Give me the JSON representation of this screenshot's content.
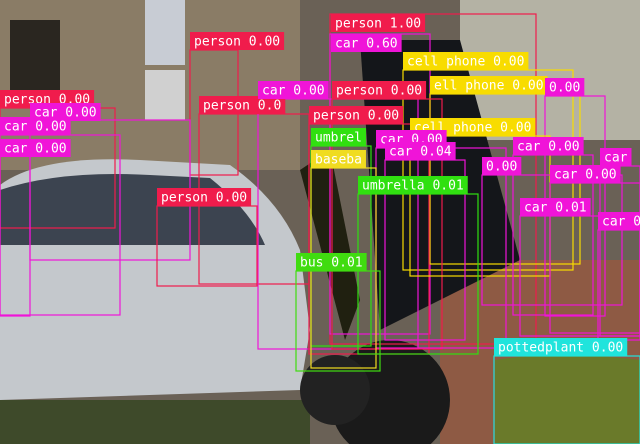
{
  "detections": [
    {
      "label": "person 1.00",
      "color": "#f01c4c"
    },
    {
      "label": "car 0.60",
      "color": "#f014d8"
    },
    {
      "label": "person 0.00",
      "color": "#f01c4c"
    },
    {
      "label": "cell phone 0.00",
      "color": "#f8dc00"
    },
    {
      "label": "ell phone 0.00",
      "color": "#f8dc00"
    },
    {
      "label": "0.00",
      "color": "#f014d8"
    },
    {
      "label": "person 0.00",
      "color": "#f01c4c"
    },
    {
      "label": "car 0.00",
      "color": "#f014d8"
    },
    {
      "label": "car 0.00",
      "color": "#f014d8"
    },
    {
      "label": "car 0.00",
      "color": "#f014d8"
    },
    {
      "label": "person 0.0",
      "color": "#f01c4c"
    },
    {
      "label": "car 0.00",
      "color": "#f014d8"
    },
    {
      "label": "person 0.00",
      "color": "#f01c4c"
    },
    {
      "label": "person 0.00",
      "color": "#f01c4c"
    },
    {
      "label": "cell phone 0.00",
      "color": "#f8dc00"
    },
    {
      "label": "umbrel",
      "color": "#30e010"
    },
    {
      "label": "car 0.00",
      "color": "#f014d8"
    },
    {
      "label": "car 0.04",
      "color": "#f014d8"
    },
    {
      "label": "baseba",
      "color": "#f0dc20"
    },
    {
      "label": "0.00",
      "color": "#f014d8"
    },
    {
      "label": "car 0.00",
      "color": "#f014d8"
    },
    {
      "label": "car 0.00",
      "color": "#f014d8"
    },
    {
      "label": "car",
      "color": "#f014d8"
    },
    {
      "label": "car 0.01",
      "color": "#f014d8"
    },
    {
      "label": "umbrella 0.01",
      "color": "#30e010"
    },
    {
      "label": "person 0.00",
      "color": "#f01c4c"
    },
    {
      "label": "bus 0.01",
      "color": "#40dc10"
    },
    {
      "label": "pottedplant 0.00",
      "color": "#20e4dc"
    },
    {
      "label": "car 0.0",
      "color": "#f014d8"
    }
  ]
}
